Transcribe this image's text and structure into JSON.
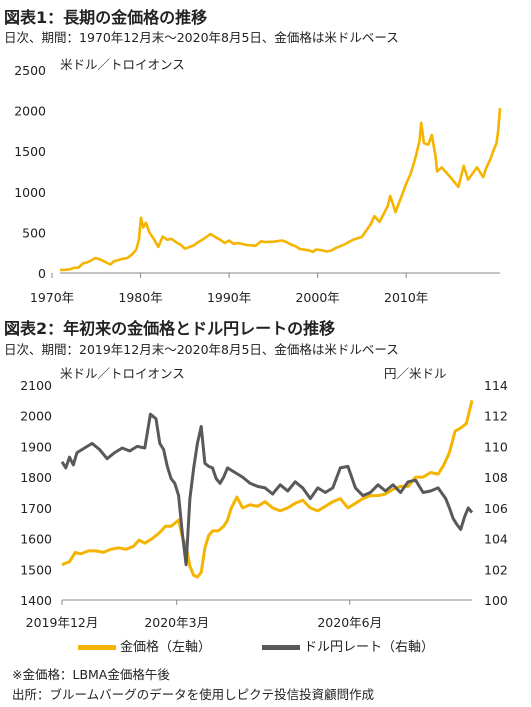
{
  "figure1": {
    "title": "図表1：長期の金価格の推移",
    "subtitle": "日次、期間：1970年12月末～2020年8月5日、金価格は米ドルベース",
    "unit": "米ドル／トロイオンス"
  },
  "figure2": {
    "title": "図表2：年初来の金価格とドル円レートの推移",
    "subtitle": "日次、期間：2019年12月末～2020年8月5日、金価格は米ドルベース",
    "unit_left": "米ドル／トロイオンス",
    "unit_right": "円／米ドル"
  },
  "legend": {
    "gold": "金価格（左軸）",
    "usdjpy": "ドル円レート（右軸）"
  },
  "notes": {
    "note1": "※金価格：LBMA金価格午後",
    "note2": "出所：ブルームバーグのデータを使用しピクテ投信投資顧問作成"
  },
  "colors": {
    "gold": "#f5b400",
    "usdjpy": "#595959",
    "axis": "#888888"
  },
  "chart_data": [
    {
      "type": "line",
      "title": "図表1：長期の金価格の推移",
      "xlabel": "",
      "ylabel": "米ドル／トロイオンス",
      "ylim": [
        0,
        2500
      ],
      "yticks": [
        "0",
        "500",
        "1000",
        "1500",
        "2000",
        "2500"
      ],
      "xticks": [
        {
          "label": "1970年",
          "value": 1970
        },
        {
          "label": "1980年",
          "value": 1980
        },
        {
          "label": "1990年",
          "value": 1990
        },
        {
          "label": "2000年",
          "value": 2000
        },
        {
          "label": "2010年",
          "value": 2010
        }
      ],
      "xlim": [
        1970.9,
        2020.6
      ],
      "grid": false,
      "series": [
        {
          "values_x": [
            1970.9,
            1971.5,
            1972.0,
            1972.5,
            1973.0,
            1973.5,
            1974.0,
            1974.5,
            1974.9,
            1975.5,
            1976.0,
            1976.6,
            1977.0,
            1977.5,
            1978.0,
            1978.5,
            1979.0,
            1979.5,
            1979.8,
            1980.05,
            1980.3,
            1980.6,
            1981.0,
            1981.5,
            1982.0,
            1982.5,
            1983.0,
            1983.5,
            1984.0,
            1984.5,
            1985.0,
            1985.5,
            1986.0,
            1986.5,
            1987.0,
            1987.9,
            1988.5,
            1989.0,
            1989.5,
            1990.0,
            1990.5,
            1991.0,
            1992.0,
            1993.0,
            1993.6,
            1994.0,
            1995.0,
            1996.0,
            1996.5,
            1997.0,
            1997.5,
            1998.0,
            1999.0,
            1999.5,
            1999.8,
            2000.5,
            2001.0,
            2001.5,
            2002.0,
            2003.0,
            2004.0,
            2005.0,
            2006.0,
            2006.4,
            2007.0,
            2007.9,
            2008.2,
            2008.8,
            2009.5,
            2010.0,
            2010.5,
            2011.0,
            2011.5,
            2011.7,
            2012.0,
            2012.5,
            2012.9,
            2013.3,
            2013.5,
            2014.0,
            2015.0,
            2015.9,
            2016.5,
            2017.0,
            2018.0,
            2018.7,
            2019.0,
            2019.5,
            2019.9,
            2020.2,
            2020.4,
            2020.6
          ],
          "values": [
            38,
            40,
            46,
            64,
            66,
            120,
            130,
            160,
            185,
            165,
            135,
            105,
            145,
            160,
            175,
            185,
            225,
            285,
            400,
            680,
            560,
            620,
            500,
            420,
            320,
            450,
            410,
            420,
            380,
            350,
            300,
            320,
            340,
            380,
            410,
            480,
            440,
            410,
            370,
            400,
            360,
            370,
            345,
            335,
            390,
            380,
            385,
            400,
            380,
            350,
            330,
            295,
            280,
            260,
            290,
            280,
            265,
            275,
            305,
            350,
            410,
            445,
            600,
            700,
            630,
            820,
            950,
            750,
            950,
            1100,
            1220,
            1400,
            1620,
            1850,
            1600,
            1580,
            1700,
            1450,
            1250,
            1300,
            1180,
            1060,
            1320,
            1150,
            1300,
            1180,
            1280,
            1400,
            1520,
            1600,
            1750,
            2030
          ]
        }
      ]
    },
    {
      "type": "line",
      "title": "図表2：年初来の金価格とドル円レートの推移",
      "xlabel": "",
      "ylabel": "米ドル／トロイオンス",
      "ylabel_right": "円／米ドル",
      "ylim": [
        1400,
        2100
      ],
      "ylim_right": [
        100,
        114
      ],
      "yticks": [
        "1400",
        "1500",
        "1600",
        "1700",
        "1800",
        "1900",
        "2000",
        "2100"
      ],
      "yticks_right": [
        "100",
        "102",
        "104",
        "106",
        "108",
        "110",
        "112",
        "114"
      ],
      "xticks": [
        {
          "label": "2019年12月",
          "value": 0
        },
        {
          "label": "2020年3月",
          "value": 61
        },
        {
          "label": "2020年6月",
          "value": 153
        }
      ],
      "x_unit_note": "days since 2019-12-31",
      "xlim": [
        0,
        218
      ],
      "grid": false,
      "legend_position": "bottom",
      "series": [
        {
          "name": "金価格（左軸）",
          "axis": "left",
          "x": [
            0,
            4,
            7,
            10,
            14,
            18,
            22,
            26,
            30,
            34,
            38,
            41,
            44,
            48,
            52,
            55,
            58,
            62,
            64,
            66,
            68,
            70,
            72,
            74,
            76,
            78,
            80,
            83,
            86,
            88,
            90,
            93,
            96,
            100,
            104,
            108,
            112,
            116,
            120,
            124,
            128,
            132,
            136,
            140,
            144,
            148,
            152,
            156,
            160,
            164,
            168,
            172,
            176,
            180,
            184,
            188,
            192,
            196,
            200,
            203,
            206,
            209,
            212,
            215,
            218
          ],
          "values": [
            1515,
            1525,
            1555,
            1550,
            1560,
            1560,
            1555,
            1565,
            1570,
            1565,
            1575,
            1595,
            1585,
            1600,
            1620,
            1640,
            1640,
            1660,
            1605,
            1575,
            1510,
            1480,
            1475,
            1490,
            1570,
            1610,
            1625,
            1625,
            1640,
            1660,
            1700,
            1735,
            1700,
            1710,
            1705,
            1720,
            1700,
            1690,
            1700,
            1715,
            1725,
            1700,
            1690,
            1705,
            1720,
            1730,
            1700,
            1715,
            1730,
            1740,
            1740,
            1745,
            1760,
            1770,
            1770,
            1800,
            1800,
            1815,
            1810,
            1840,
            1880,
            1950,
            1960,
            1975,
            2050
          ]
        },
        {
          "name": "ドル円レート（右軸）",
          "axis": "right",
          "x": [
            0,
            2,
            4,
            6,
            8,
            12,
            16,
            20,
            24,
            28,
            32,
            36,
            40,
            44,
            47,
            50,
            52,
            54,
            56,
            58,
            60,
            62,
            64,
            66,
            68,
            70,
            72,
            74,
            76,
            78,
            80,
            82,
            84,
            86,
            88,
            92,
            96,
            100,
            104,
            108,
            112,
            116,
            120,
            124,
            128,
            132,
            136,
            140,
            144,
            148,
            152,
            156,
            160,
            164,
            168,
            172,
            176,
            180,
            184,
            188,
            192,
            196,
            200,
            204,
            206,
            208,
            210,
            212,
            214,
            216,
            218
          ],
          "values": [
            109.0,
            108.6,
            109.3,
            108.8,
            109.6,
            109.9,
            110.2,
            109.8,
            109.2,
            109.6,
            109.9,
            109.7,
            110.0,
            109.9,
            112.1,
            111.8,
            110.2,
            109.8,
            108.7,
            107.9,
            107.6,
            106.8,
            104.3,
            102.3,
            106.6,
            108.6,
            110.2,
            111.3,
            108.9,
            108.7,
            108.6,
            107.9,
            107.6,
            108.0,
            108.6,
            108.3,
            108.0,
            107.6,
            107.4,
            107.3,
            106.9,
            107.5,
            107.1,
            107.7,
            107.3,
            106.6,
            107.3,
            107.0,
            107.3,
            108.6,
            108.7,
            107.3,
            106.8,
            107.0,
            107.5,
            107.1,
            107.5,
            107.0,
            107.7,
            107.8,
            107.0,
            107.1,
            107.3,
            106.6,
            106.0,
            105.3,
            104.9,
            104.6,
            105.4,
            106.0,
            105.7
          ]
        }
      ]
    }
  ]
}
